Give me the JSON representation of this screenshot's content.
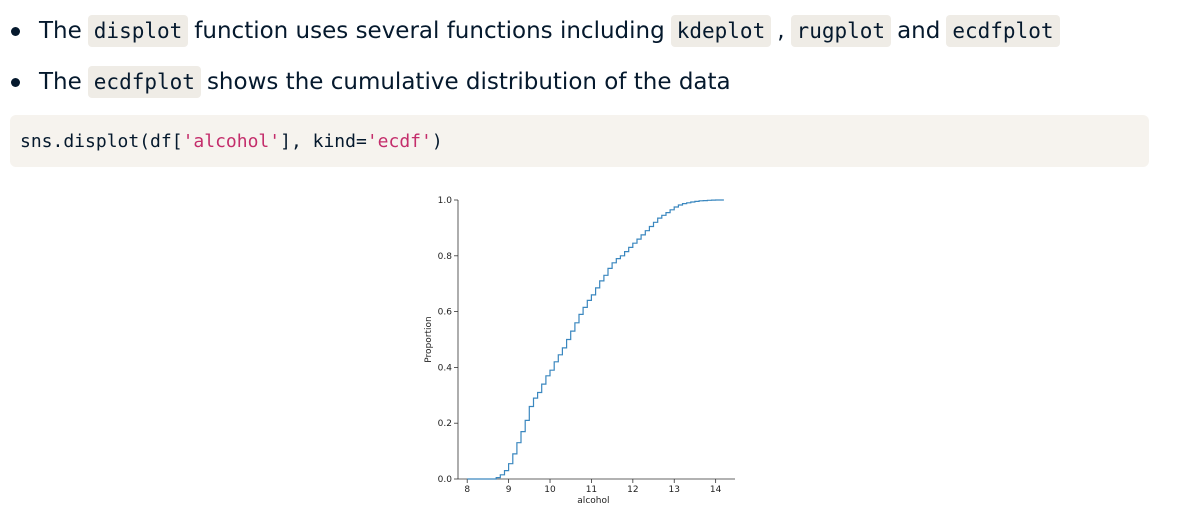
{
  "bullets": [
    {
      "w1": "The",
      "c1": "displot",
      "w2": "function uses several functions including",
      "c2": "kdeplot",
      "w3": ",",
      "c3": "rugplot",
      "w4": "and",
      "c4": "ecdfplot"
    },
    {
      "w1": "The",
      "c1": "ecdfplot",
      "w2": "shows the cumulative distribution of the data"
    }
  ],
  "code": {
    "p1": "sns.displot(df[",
    "s1": "'alcohol'",
    "p2": "], kind=",
    "s2": "'ecdf'",
    "p3": ")"
  },
  "chart_data": {
    "type": "line",
    "subtype": "ecdf-step",
    "title": "",
    "xlabel": "alcohol",
    "ylabel": "Proportion",
    "xlim": [
      7.85,
      14.25
    ],
    "ylim": [
      0.0,
      1.0
    ],
    "xticks": [
      "8",
      "9",
      "10",
      "11",
      "12",
      "13",
      "14"
    ],
    "yticks": [
      "0.0",
      "0.2",
      "0.4",
      "0.6",
      "0.8",
      "1.0"
    ],
    "line_color": "#3a87bf",
    "grid": false,
    "series": [
      {
        "x": [
          8.0,
          8.7,
          8.8,
          8.9,
          9.0,
          9.1,
          9.2,
          9.3,
          9.4,
          9.5,
          9.6,
          9.7,
          9.8,
          9.9,
          10.0,
          10.1,
          10.2,
          10.3,
          10.4,
          10.5,
          10.6,
          10.7,
          10.8,
          10.9,
          11.0,
          11.1,
          11.2,
          11.3,
          11.4,
          11.5,
          11.6,
          11.7,
          11.8,
          11.9,
          12.0,
          12.1,
          12.2,
          12.3,
          12.4,
          12.5,
          12.6,
          12.7,
          12.8,
          12.9,
          13.0,
          13.1,
          13.2,
          13.3,
          13.4,
          13.5,
          13.6,
          13.7,
          13.8,
          13.9,
          14.0,
          14.2
        ],
        "y": [
          0.0,
          0.005,
          0.015,
          0.03,
          0.055,
          0.09,
          0.13,
          0.17,
          0.21,
          0.26,
          0.29,
          0.31,
          0.34,
          0.37,
          0.39,
          0.42,
          0.445,
          0.47,
          0.5,
          0.53,
          0.56,
          0.59,
          0.615,
          0.64,
          0.66,
          0.685,
          0.71,
          0.73,
          0.755,
          0.775,
          0.79,
          0.8,
          0.815,
          0.83,
          0.845,
          0.86,
          0.875,
          0.89,
          0.905,
          0.92,
          0.935,
          0.945,
          0.955,
          0.965,
          0.975,
          0.982,
          0.987,
          0.99,
          0.993,
          0.995,
          0.997,
          0.998,
          0.999,
          0.9995,
          1.0,
          1.0
        ]
      }
    ]
  }
}
